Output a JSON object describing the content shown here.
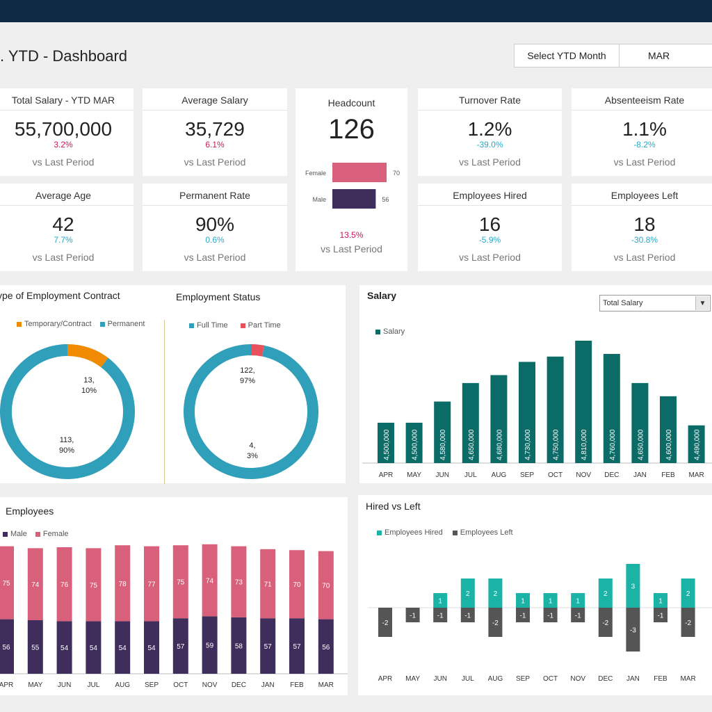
{
  "header": {
    "title": ". YTD - Dashboard",
    "select_label": "Select YTD Month",
    "select_value": "MAR"
  },
  "kpis": {
    "total_salary": {
      "title": "Total Salary - YTD MAR",
      "value": "55,700,000",
      "change": "3.2%",
      "vs": "vs Last Period"
    },
    "average_salary": {
      "title": "Average Salary",
      "value": "35,729",
      "change": "6.1%",
      "vs": "vs Last Period"
    },
    "headcount": {
      "title": "Headcount",
      "value": "126",
      "change": "13.5%",
      "vs": "vs Last Period",
      "bars": [
        {
          "label": "Female",
          "value": 70,
          "color": "#d9607a"
        },
        {
          "label": "Male",
          "value": 56,
          "color": "#3f2d5c"
        }
      ]
    },
    "turnover_rate": {
      "title": "Turnover Rate",
      "value": "1.2%",
      "change": "-39.0%",
      "vs": "vs Last Period"
    },
    "absenteeism_rate": {
      "title": "Absenteeism Rate",
      "value": "1.1%",
      "change": "-8.2%",
      "vs": "vs Last Period"
    },
    "average_age": {
      "title": "Average Age",
      "value": "42",
      "change": "7.7%",
      "vs": "vs Last Period"
    },
    "permanent_rate": {
      "title": "Permanent Rate",
      "value": "90%",
      "change": "0.6%",
      "vs": "vs Last Period"
    },
    "employees_hired": {
      "title": "Employees Hired",
      "value": "16",
      "change": "-5.9%",
      "vs": "vs Last Period"
    },
    "employees_left": {
      "title": "Employees Left",
      "value": "18",
      "change": "-30.8%",
      "vs": "vs Last Period"
    }
  },
  "salary_dropdown": {
    "value": "Total Salary",
    "arrow_icon": "triangle-down-icon"
  },
  "chart_data": [
    {
      "type": "pie",
      "title": "ype of Employment Contract",
      "labels": [
        "Temporary/Contract",
        "Permanent"
      ],
      "values": [
        13,
        113
      ],
      "data_labels": [
        [
          "13,",
          "10%"
        ],
        [
          "113,",
          "90%"
        ]
      ],
      "colors": [
        "#f08a00",
        "#2f9fba"
      ],
      "legend": "top"
    },
    {
      "type": "pie",
      "title": "Employment Status",
      "labels": [
        "Full Time",
        "Part Time"
      ],
      "values": [
        122,
        4
      ],
      "data_labels": [
        [
          "122,",
          "97%"
        ],
        [
          "4,",
          "3%"
        ]
      ],
      "colors": [
        "#2f9fba",
        "#e8505b"
      ],
      "legend": "top"
    },
    {
      "type": "bar",
      "title": "Salary",
      "categories": [
        "APR",
        "MAY",
        "JUN",
        "JUL",
        "AUG",
        "SEP",
        "OCT",
        "NOV",
        "DEC",
        "JAN",
        "FEB",
        "MAR"
      ],
      "series": [
        {
          "name": "Salary",
          "values": [
            4500000,
            4500000,
            4580000,
            4650000,
            4680000,
            4730000,
            4750000,
            4810000,
            4760000,
            4650000,
            4600000,
            4490000
          ],
          "labels": [
            "4,500,000",
            "4,500,000",
            "4,580,000",
            "4,650,000",
            "4,680,000",
            "4,730,000",
            "4,750,000",
            "4,810,000",
            "4,760,000",
            "4,650,000",
            "4,600,000",
            "4,490,000"
          ]
        }
      ],
      "color": "#0b6b67",
      "legend": "top-left"
    },
    {
      "type": "bar",
      "title": "Employees",
      "stacked": true,
      "categories": [
        "APR",
        "MAY",
        "JUN",
        "JUL",
        "AUG",
        "SEP",
        "OCT",
        "NOV",
        "DEC",
        "JAN",
        "FEB",
        "MAR"
      ],
      "series": [
        {
          "name": "Male",
          "values": [
            56,
            55,
            54,
            54,
            54,
            54,
            57,
            59,
            58,
            57,
            57,
            56
          ],
          "color": "#3f2d5c"
        },
        {
          "name": "Female",
          "values": [
            75,
            74,
            76,
            75,
            78,
            77,
            75,
            74,
            73,
            71,
            70,
            70
          ],
          "color": "#d9607a"
        }
      ],
      "legend": "top-left"
    },
    {
      "type": "bar",
      "title": "Hired vs Left",
      "categories": [
        "APR",
        "MAY",
        "JUN",
        "JUL",
        "AUG",
        "SEP",
        "OCT",
        "NOV",
        "DEC",
        "JAN",
        "FEB",
        "MAR"
      ],
      "series": [
        {
          "name": "Employees Hired",
          "values": [
            0,
            0,
            1,
            2,
            2,
            1,
            1,
            1,
            2,
            3,
            1,
            2
          ],
          "color": "#1ab3a6"
        },
        {
          "name": "Employees Left",
          "values": [
            -2,
            -1,
            -1,
            -1,
            -2,
            -1,
            -1,
            -1,
            -2,
            -3,
            -1,
            -2
          ],
          "color": "#555555"
        }
      ],
      "legend": "top-left"
    }
  ]
}
